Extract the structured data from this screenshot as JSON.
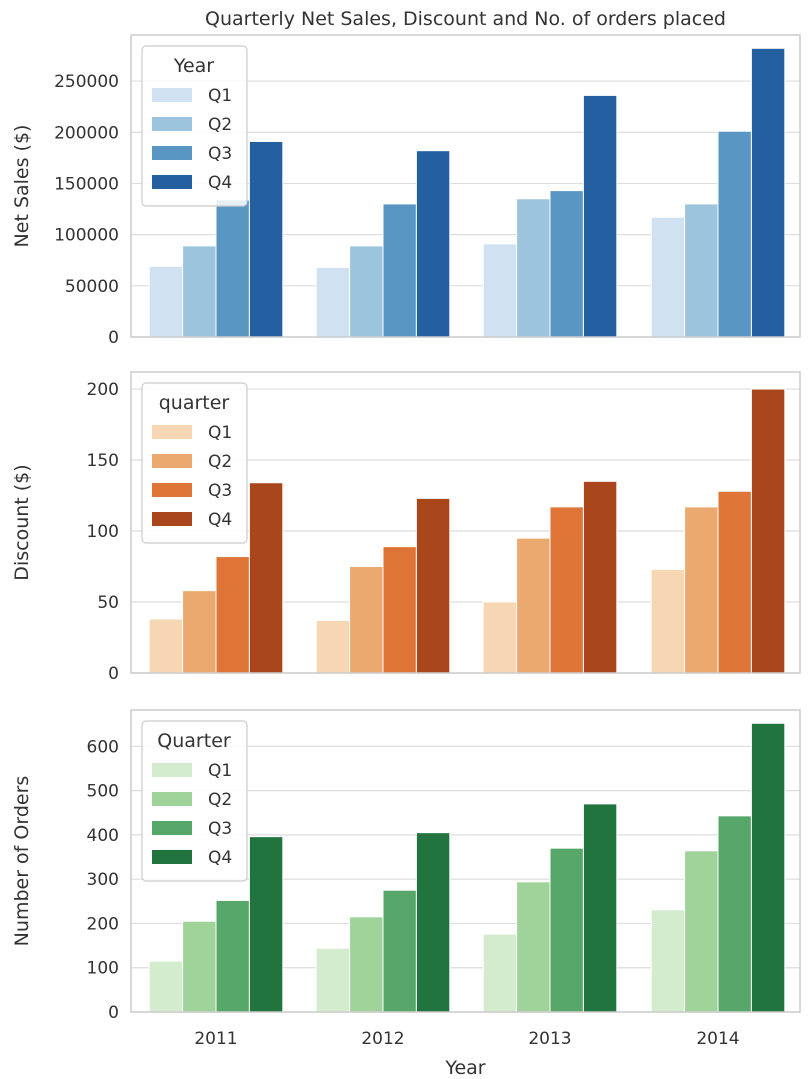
{
  "chart_data": [
    {
      "type": "bar",
      "title": "Quarterly Net Sales, Discount and No. of orders placed",
      "xlabel": "",
      "ylabel": "Net Sales ($)",
      "ylim": [
        0,
        295000
      ],
      "yticks": [
        0,
        50000,
        100000,
        150000,
        200000,
        250000
      ],
      "ytick_labels": [
        "0",
        "50000",
        "100000",
        "150000",
        "200000",
        "250000"
      ],
      "categories": [
        "2011",
        "2012",
        "2013",
        "2014"
      ],
      "show_x_tick_labels": false,
      "grid": true,
      "legend": {
        "title": "Year",
        "placement": "top-left"
      },
      "colors": [
        "#d0e1f1",
        "#9cc5dd",
        "#5a96c3",
        "#2460a0"
      ],
      "series": [
        {
          "name": "Q1",
          "values": [
            69000,
            68000,
            91000,
            117000
          ]
        },
        {
          "name": "Q2",
          "values": [
            89000,
            89000,
            135000,
            130000
          ]
        },
        {
          "name": "Q3",
          "values": [
            134000,
            130000,
            143000,
            201000
          ]
        },
        {
          "name": "Q4",
          "values": [
            191000,
            182000,
            236000,
            282000
          ]
        }
      ]
    },
    {
      "type": "bar",
      "title": "",
      "xlabel": "",
      "ylabel": "Discount ($)",
      "ylim": [
        0,
        212
      ],
      "yticks": [
        0,
        50,
        100,
        150,
        200
      ],
      "ytick_labels": [
        "0",
        "50",
        "100",
        "150",
        "200"
      ],
      "categories": [
        "2011",
        "2012",
        "2013",
        "2014"
      ],
      "show_x_tick_labels": false,
      "grid": true,
      "legend": {
        "title": "quarter",
        "placement": "top-left"
      },
      "colors": [
        "#f7d6b4",
        "#eba86f",
        "#de7537",
        "#a9461b"
      ],
      "series": [
        {
          "name": "Q1",
          "values": [
            38,
            37,
            50,
            73
          ]
        },
        {
          "name": "Q2",
          "values": [
            58,
            75,
            95,
            117
          ]
        },
        {
          "name": "Q3",
          "values": [
            82,
            89,
            117,
            128
          ]
        },
        {
          "name": "Q4",
          "values": [
            134,
            123,
            135,
            200
          ]
        }
      ]
    },
    {
      "type": "bar",
      "title": "",
      "xlabel": "Year",
      "ylabel": "Number of Orders",
      "ylim": [
        0,
        682
      ],
      "yticks": [
        0,
        100,
        200,
        300,
        400,
        500,
        600
      ],
      "ytick_labels": [
        "0",
        "100",
        "200",
        "300",
        "400",
        "500",
        "600"
      ],
      "categories": [
        "2011",
        "2012",
        "2013",
        "2014"
      ],
      "show_x_tick_labels": true,
      "grid": true,
      "legend": {
        "title": "Quarter",
        "placement": "top-left"
      },
      "colors": [
        "#d3ecce",
        "#a0d39a",
        "#58a76a",
        "#21743e"
      ],
      "series": [
        {
          "name": "Q1",
          "values": [
            115,
            144,
            176,
            231
          ]
        },
        {
          "name": "Q2",
          "values": [
            205,
            215,
            294,
            364
          ]
        },
        {
          "name": "Q3",
          "values": [
            252,
            275,
            370,
            443
          ]
        },
        {
          "name": "Q4",
          "values": [
            396,
            405,
            470,
            652
          ]
        }
      ]
    }
  ]
}
